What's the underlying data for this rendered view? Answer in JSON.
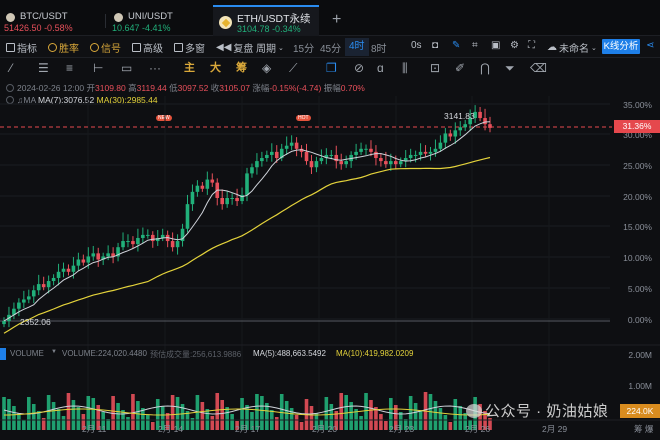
{
  "tabs": [
    {
      "symbol": "BTC/USDT",
      "price": "51426.50",
      "change": "-0.58%",
      "direction": "down"
    },
    {
      "symbol": "UNI/USDT",
      "price": "10.647",
      "change": "-4.41%",
      "direction": "up"
    },
    {
      "symbol": "ETH/USDT永续",
      "price": "3104.78",
      "change": "-0.34%",
      "direction": "up",
      "active": true
    }
  ],
  "toolbar": {
    "indicators": "指标",
    "winrate": "胜率",
    "signals": "信号",
    "advanced": "高级",
    "multiwindow": "多窗",
    "replay": "复盘",
    "period": "周期",
    "intervals": [
      "15分",
      "45分",
      "4时",
      "8时"
    ],
    "selected_interval": "4时",
    "countdown": "0s",
    "layout_name": "未命名",
    "kline_analysis": "K线分析"
  },
  "drawbar": {
    "main": "主",
    "big": "大",
    "chips": "筹",
    "new_badge": "NEW",
    "hot_badge": "HOT"
  },
  "ohlc": {
    "datetime": "2024-02-26 12:00",
    "open_label": "开",
    "open": "3109.80",
    "high_label": "高",
    "high": "3119.44",
    "low_label": "低",
    "low": "3097.52",
    "close_label": "收",
    "close": "3105.07",
    "change_label": "涨幅",
    "change": "-0.15%(-4.74)",
    "amp_label": "振幅",
    "amplitude": "0.70%"
  },
  "ma": {
    "label": "MA",
    "ma7": "MA(7):3076.52",
    "ma30": "MA(30):2985.44"
  },
  "price_axis": {
    "ticks": [
      "35.00%",
      "30.00%",
      "25.00%",
      "20.00%",
      "15.00%",
      "10.00%",
      "5.00%",
      "0.00%"
    ],
    "current": "31.36%"
  },
  "annotations": {
    "high": "3141.83",
    "low": "2352.06"
  },
  "volume": {
    "label": "VOLUME",
    "volume": "VOLUME:224,020.4480",
    "estimate": "预估成交量:256,613.9886",
    "ma5": "MA(5):488,663.5492",
    "ma10": "MA(10):419,982.0209",
    "ticks": [
      "2.00M",
      "1.00M"
    ],
    "current": "224.0K"
  },
  "xaxis": {
    "labels": [
      "2月 11",
      "2月 14",
      "2月 17",
      "2月 20",
      "2月 23",
      "2月 26",
      "2月 29"
    ]
  },
  "footer": {
    "right": "筹 爆"
  },
  "watermark": "公众号 · 奶油姑娘",
  "colors": {
    "up": "#21b07a",
    "down": "#e8505b",
    "ma7": "#cfd3da",
    "ma30": "#e3d23b",
    "accent": "#2a8cf0"
  },
  "chart_data": {
    "type": "candlestick",
    "title": "ETH/USDT永续 4H",
    "ylabel": "% change",
    "ylim": [
      -1,
      36
    ],
    "y_ticks": [
      "0.00%",
      "5.00%",
      "10.00%",
      "15.00%",
      "20.00%",
      "25.00%",
      "30.00%",
      "35.00%"
    ],
    "x_labels": [
      "2月 11",
      "2月 14",
      "2月 17",
      "2月 20",
      "2月 23",
      "2月 26",
      "2月 29"
    ],
    "range_low": 2352.06,
    "range_high": 3141.83,
    "last_change_pct": 31.36,
    "series": [
      {
        "name": "MA(7)",
        "last": 3076.52
      },
      {
        "name": "MA(30)",
        "last": 2985.44
      }
    ]
  }
}
